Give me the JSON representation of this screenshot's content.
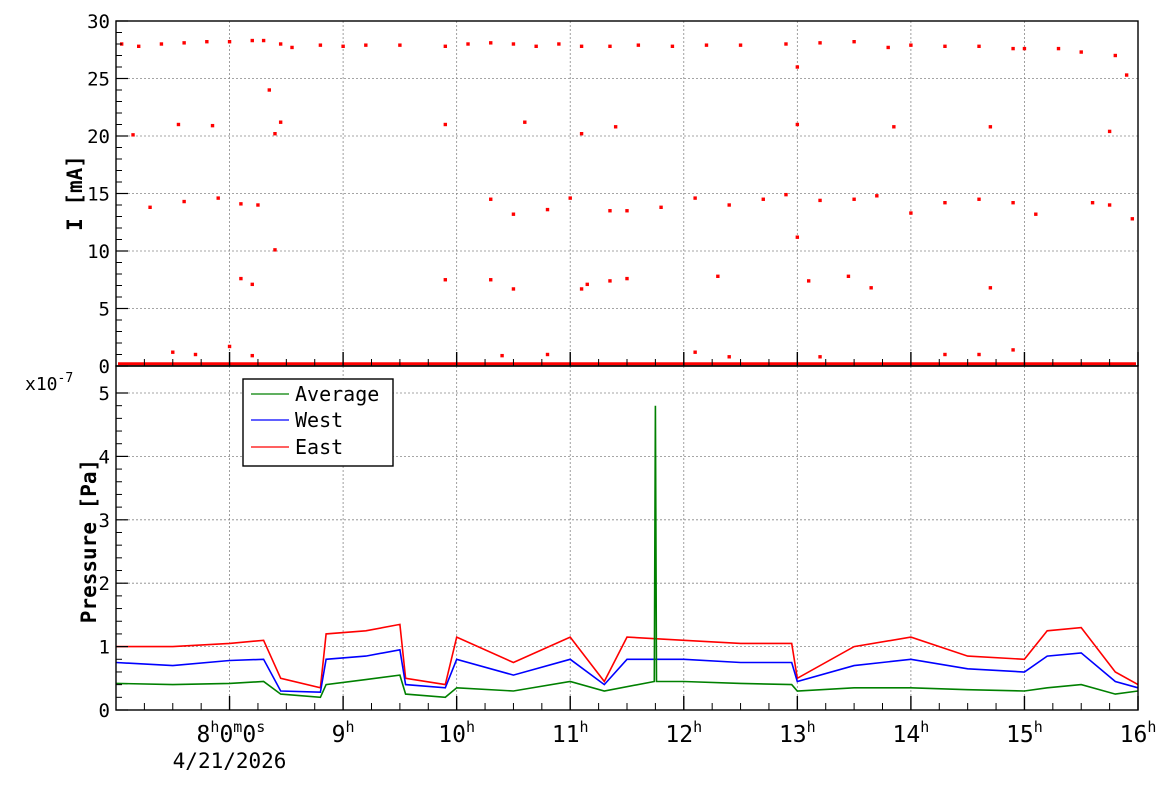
{
  "chart_data": [
    {
      "type": "scatter",
      "ylabel": "I [mA]",
      "ylim": [
        0,
        30
      ],
      "yticks": [
        "0",
        "5",
        "10",
        "15",
        "20",
        "25",
        "30"
      ],
      "xlim": [
        "7:00",
        "16:00"
      ],
      "grid": true,
      "series": [
        {
          "color": "#ff0000",
          "points": [
            [
              7.05,
              28
            ],
            [
              7.2,
              27.8
            ],
            [
              7.4,
              28
            ],
            [
              7.6,
              28.1
            ],
            [
              7.8,
              28.2
            ],
            [
              8.0,
              28.2
            ],
            [
              8.2,
              28.3
            ],
            [
              8.3,
              28.3
            ],
            [
              8.35,
              24
            ],
            [
              8.4,
              20.2
            ],
            [
              8.45,
              28
            ],
            [
              8.55,
              27.7
            ],
            [
              8.8,
              27.9
            ],
            [
              9.0,
              27.8
            ],
            [
              9.2,
              27.9
            ],
            [
              9.5,
              27.9
            ],
            [
              9.9,
              27.8
            ],
            [
              10.1,
              28
            ],
            [
              10.3,
              28.1
            ],
            [
              10.5,
              28
            ],
            [
              10.7,
              27.8
            ],
            [
              10.9,
              28
            ],
            [
              11.1,
              27.8
            ],
            [
              11.35,
              27.8
            ],
            [
              11.6,
              27.9
            ],
            [
              11.9,
              27.8
            ],
            [
              12.2,
              27.9
            ],
            [
              12.5,
              27.9
            ],
            [
              12.9,
              28
            ],
            [
              13.0,
              26
            ],
            [
              13.2,
              28.1
            ],
            [
              13.5,
              28.2
            ],
            [
              13.8,
              27.7
            ],
            [
              14.0,
              27.9
            ],
            [
              14.3,
              27.8
            ],
            [
              14.6,
              27.8
            ],
            [
              14.9,
              27.6
            ],
            [
              15.0,
              27.6
            ],
            [
              15.3,
              27.6
            ],
            [
              15.5,
              27.3
            ],
            [
              15.8,
              27
            ],
            [
              15.9,
              25.3
            ],
            [
              7.55,
              21
            ],
            [
              7.85,
              20.9
            ],
            [
              8.45,
              21.2
            ],
            [
              9.9,
              21
            ],
            [
              10.6,
              21.2
            ],
            [
              11.1,
              20.2
            ],
            [
              11.4,
              20.8
            ],
            [
              13.0,
              21
            ],
            [
              13.85,
              20.8
            ],
            [
              14.7,
              20.8
            ],
            [
              15.75,
              20.4
            ],
            [
              7.3,
              13.8
            ],
            [
              7.6,
              14.3
            ],
            [
              7.9,
              14.6
            ],
            [
              8.1,
              14.1
            ],
            [
              8.25,
              14
            ],
            [
              10.3,
              14.5
            ],
            [
              10.5,
              13.2
            ],
            [
              10.8,
              13.6
            ],
            [
              11.0,
              14.6
            ],
            [
              11.35,
              13.5
            ],
            [
              11.5,
              13.5
            ],
            [
              11.8,
              13.8
            ],
            [
              12.1,
              14.6
            ],
            [
              12.4,
              14
            ],
            [
              12.7,
              14.5
            ],
            [
              12.9,
              14.9
            ],
            [
              13.2,
              14.4
            ],
            [
              13.5,
              14.5
            ],
            [
              13.7,
              14.8
            ],
            [
              14.0,
              13.3
            ],
            [
              14.3,
              14.2
            ],
            [
              14.6,
              14.5
            ],
            [
              14.9,
              14.2
            ],
            [
              15.1,
              13.2
            ],
            [
              15.6,
              14.2
            ],
            [
              15.75,
              14
            ],
            [
              15.95,
              12.8
            ],
            [
              7.15,
              20.1
            ],
            [
              8.1,
              7.6
            ],
            [
              8.2,
              7.1
            ],
            [
              8.4,
              10.1
            ],
            [
              9.9,
              7.5
            ],
            [
              10.3,
              7.5
            ],
            [
              10.5,
              6.7
            ],
            [
              11.1,
              6.7
            ],
            [
              11.15,
              7.1
            ],
            [
              11.35,
              7.4
            ],
            [
              11.5,
              7.6
            ],
            [
              12.3,
              7.8
            ],
            [
              13.0,
              11.2
            ],
            [
              13.1,
              7.4
            ],
            [
              13.45,
              7.8
            ],
            [
              13.65,
              6.8
            ],
            [
              14.7,
              6.8
            ],
            [
              7.5,
              1.2
            ],
            [
              7.7,
              1.0
            ],
            [
              8.0,
              1.7
            ],
            [
              8.2,
              0.9
            ],
            [
              10.4,
              0.9
            ],
            [
              10.8,
              1.0
            ],
            [
              12.1,
              1.2
            ],
            [
              12.4,
              0.8
            ],
            [
              13.2,
              0.8
            ],
            [
              14.3,
              1.0
            ],
            [
              14.6,
              1.0
            ],
            [
              14.9,
              1.4
            ]
          ]
        }
      ]
    },
    {
      "type": "line",
      "ylabel": "Pressure [Pa]",
      "y_multiplier": "x10",
      "y_exponent": "-7",
      "ylim": [
        0,
        5
      ],
      "yticks": [
        "0",
        "1",
        "2",
        "3",
        "4",
        "5"
      ],
      "xlim": [
        "7:00",
        "16:00"
      ],
      "xticks": [
        {
          "h": "8",
          "rest": "0",
          "m": "0",
          "s": "s",
          "date": "4/21/2026",
          "value": 8
        },
        {
          "h": "9",
          "value": 9
        },
        {
          "h": "10",
          "value": 10
        },
        {
          "h": "11",
          "value": 11
        },
        {
          "h": "12",
          "value": 12
        },
        {
          "h": "13",
          "value": 13
        },
        {
          "h": "14",
          "value": 14
        },
        {
          "h": "15",
          "value": 15
        },
        {
          "h": "16",
          "value": 16
        }
      ],
      "grid": true,
      "legend": {
        "position": "top-left"
      },
      "series": [
        {
          "name": "Average",
          "color": "#008000",
          "points": [
            [
              7.0,
              0.42
            ],
            [
              7.5,
              0.4
            ],
            [
              8.0,
              0.42
            ],
            [
              8.3,
              0.45
            ],
            [
              8.45,
              0.25
            ],
            [
              8.8,
              0.2
            ],
            [
              8.85,
              0.4
            ],
            [
              9.2,
              0.48
            ],
            [
              9.5,
              0.55
            ],
            [
              9.55,
              0.25
            ],
            [
              9.9,
              0.2
            ],
            [
              10.0,
              0.35
            ],
            [
              10.5,
              0.3
            ],
            [
              11.0,
              0.45
            ],
            [
              11.3,
              0.3
            ],
            [
              11.74,
              0.45
            ],
            [
              11.75,
              4.8
            ],
            [
              11.76,
              0.45
            ],
            [
              12.0,
              0.45
            ],
            [
              12.5,
              0.42
            ],
            [
              12.95,
              0.4
            ],
            [
              13.0,
              0.3
            ],
            [
              13.5,
              0.35
            ],
            [
              14.0,
              0.35
            ],
            [
              14.5,
              0.32
            ],
            [
              15.0,
              0.3
            ],
            [
              15.2,
              0.35
            ],
            [
              15.5,
              0.4
            ],
            [
              15.8,
              0.25
            ],
            [
              16.0,
              0.3
            ]
          ]
        },
        {
          "name": "West",
          "color": "#0000ff",
          "points": [
            [
              7.0,
              0.75
            ],
            [
              7.5,
              0.7
            ],
            [
              8.0,
              0.78
            ],
            [
              8.3,
              0.8
            ],
            [
              8.45,
              0.3
            ],
            [
              8.8,
              0.28
            ],
            [
              8.85,
              0.8
            ],
            [
              9.2,
              0.85
            ],
            [
              9.5,
              0.95
            ],
            [
              9.55,
              0.4
            ],
            [
              9.9,
              0.35
            ],
            [
              10.0,
              0.8
            ],
            [
              10.5,
              0.55
            ],
            [
              11.0,
              0.8
            ],
            [
              11.3,
              0.4
            ],
            [
              11.5,
              0.8
            ],
            [
              12.0,
              0.8
            ],
            [
              12.5,
              0.75
            ],
            [
              12.95,
              0.75
            ],
            [
              13.0,
              0.45
            ],
            [
              13.5,
              0.7
            ],
            [
              14.0,
              0.8
            ],
            [
              14.5,
              0.65
            ],
            [
              15.0,
              0.6
            ],
            [
              15.2,
              0.85
            ],
            [
              15.5,
              0.9
            ],
            [
              15.8,
              0.45
            ],
            [
              16.0,
              0.35
            ]
          ]
        },
        {
          "name": "East",
          "color": "#ff0000",
          "points": [
            [
              7.0,
              1.0
            ],
            [
              7.5,
              1.0
            ],
            [
              8.0,
              1.05
            ],
            [
              8.3,
              1.1
            ],
            [
              8.45,
              0.5
            ],
            [
              8.8,
              0.35
            ],
            [
              8.85,
              1.2
            ],
            [
              9.2,
              1.25
            ],
            [
              9.5,
              1.35
            ],
            [
              9.55,
              0.5
            ],
            [
              9.9,
              0.4
            ],
            [
              10.0,
              1.15
            ],
            [
              10.5,
              0.75
            ],
            [
              11.0,
              1.15
            ],
            [
              11.3,
              0.45
            ],
            [
              11.5,
              1.15
            ],
            [
              12.0,
              1.1
            ],
            [
              12.5,
              1.05
            ],
            [
              12.95,
              1.05
            ],
            [
              13.0,
              0.5
            ],
            [
              13.5,
              1.0
            ],
            [
              14.0,
              1.15
            ],
            [
              14.5,
              0.85
            ],
            [
              15.0,
              0.8
            ],
            [
              15.2,
              1.25
            ],
            [
              15.5,
              1.3
            ],
            [
              15.8,
              0.6
            ],
            [
              16.0,
              0.4
            ]
          ]
        }
      ]
    }
  ]
}
